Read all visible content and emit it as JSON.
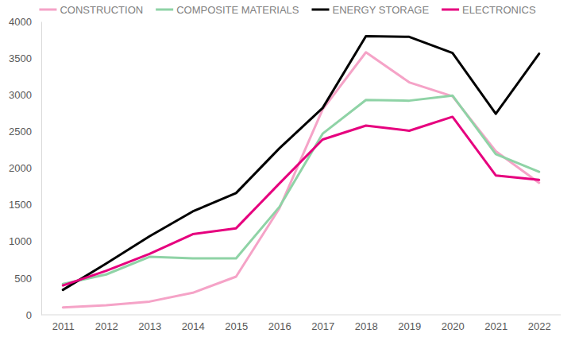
{
  "chart_data": {
    "type": "line",
    "categories": [
      "2011",
      "2012",
      "2013",
      "2014",
      "2015",
      "2016",
      "2017",
      "2018",
      "2019",
      "2020",
      "2021",
      "2022"
    ],
    "series": [
      {
        "name": "CONSTRUCTION",
        "color": "#f5a3c7",
        "values": [
          100,
          130,
          180,
          300,
          520,
          1450,
          2800,
          3580,
          3170,
          2980,
          2230,
          1800
        ]
      },
      {
        "name": "COMPOSITE MATERIALS",
        "color": "#8fd3a6",
        "values": [
          420,
          550,
          790,
          770,
          770,
          1470,
          2470,
          2930,
          2920,
          2990,
          2190,
          1950
        ]
      },
      {
        "name": "ENERGY STORAGE",
        "color": "#000000",
        "values": [
          340,
          700,
          1070,
          1410,
          1660,
          2270,
          2820,
          3800,
          3790,
          3570,
          2740,
          3560
        ]
      },
      {
        "name": "ELECTRONICS",
        "color": "#e6007e",
        "values": [
          400,
          600,
          830,
          1100,
          1180,
          1790,
          2390,
          2580,
          2510,
          2700,
          1900,
          1840
        ]
      }
    ],
    "ylim": [
      0,
      4000
    ],
    "yticks": [
      0,
      500,
      1000,
      1500,
      2000,
      2500,
      3000,
      3500,
      4000
    ],
    "grid": false,
    "legend": "top"
  }
}
